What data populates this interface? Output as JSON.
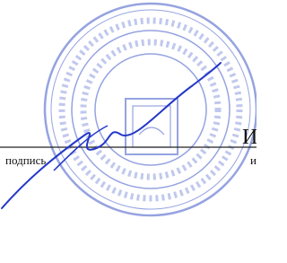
{
  "signature_block": {
    "name_initial": "И",
    "caption": "подпись",
    "caption_right": "и"
  }
}
